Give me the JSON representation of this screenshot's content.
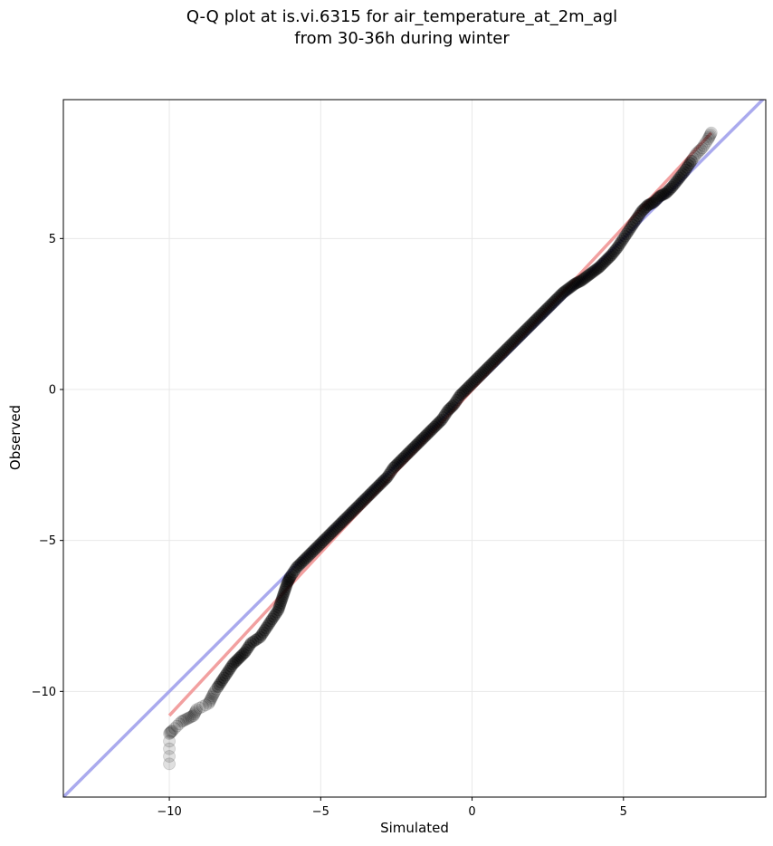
{
  "chart_data": {
    "type": "scatter",
    "title": "Q-Q plot at is.vi.6315 for air_temperature_at_2m_agl",
    "subtitle": "from 30-36h during winter",
    "xlabel": "Simulated",
    "ylabel": "Observed",
    "xlim": [
      -13.5,
      9.7
    ],
    "ylim": [
      -13.5,
      9.6
    ],
    "xticks": [
      -10,
      -5,
      0,
      5
    ],
    "yticks": [
      -10,
      -5,
      0,
      5
    ],
    "xtick_labels": [
      "−10",
      "−5",
      "0",
      "5"
    ],
    "ytick_labels": [
      "−10",
      "−5",
      "0",
      "5"
    ],
    "grid": true,
    "reference_line": {
      "name": "",
      "color": "#aaaaee",
      "from": [
        -13.5,
        -13.5
      ],
      "to": [
        9.7,
        9.7
      ]
    },
    "fit_line": {
      "name": "",
      "color": "#f2a0a0",
      "from": [
        -10.0,
        -10.8
      ],
      "to": [
        7.9,
        8.5
      ]
    },
    "quantiles": [
      [
        -10.0,
        -12.4
      ],
      [
        -10.0,
        -11.4
      ],
      [
        -9.9,
        -11.3
      ],
      [
        -9.6,
        -11.0
      ],
      [
        -9.4,
        -10.9
      ],
      [
        -9.2,
        -10.8
      ],
      [
        -9.1,
        -10.6
      ],
      [
        -8.7,
        -10.4
      ],
      [
        -8.6,
        -10.2
      ],
      [
        -8.5,
        -10.0
      ],
      [
        -8.3,
        -9.7
      ],
      [
        -8.1,
        -9.4
      ],
      [
        -7.9,
        -9.1
      ],
      [
        -7.7,
        -8.9
      ],
      [
        -7.5,
        -8.7
      ],
      [
        -7.3,
        -8.4
      ],
      [
        -7.0,
        -8.2
      ],
      [
        -6.8,
        -7.9
      ],
      [
        -6.6,
        -7.6
      ],
      [
        -6.4,
        -7.3
      ],
      [
        -6.3,
        -7.0
      ],
      [
        -6.2,
        -6.7
      ],
      [
        -6.1,
        -6.4
      ],
      [
        -6.0,
        -6.2
      ],
      [
        -5.8,
        -5.9
      ],
      [
        -5.6,
        -5.7
      ],
      [
        -5.4,
        -5.5
      ],
      [
        -5.2,
        -5.3
      ],
      [
        -5.0,
        -5.1
      ],
      [
        -4.8,
        -4.9
      ],
      [
        -4.6,
        -4.7
      ],
      [
        -4.4,
        -4.5
      ],
      [
        -4.2,
        -4.3
      ],
      [
        -4.0,
        -4.1
      ],
      [
        -3.8,
        -3.9
      ],
      [
        -3.6,
        -3.7
      ],
      [
        -3.4,
        -3.5
      ],
      [
        -3.2,
        -3.3
      ],
      [
        -3.0,
        -3.1
      ],
      [
        -2.8,
        -2.9
      ],
      [
        -2.6,
        -2.6
      ],
      [
        -2.4,
        -2.4
      ],
      [
        -2.2,
        -2.2
      ],
      [
        -2.0,
        -2.0
      ],
      [
        -1.8,
        -1.8
      ],
      [
        -1.6,
        -1.6
      ],
      [
        -1.4,
        -1.4
      ],
      [
        -1.2,
        -1.2
      ],
      [
        -1.0,
        -1.0
      ],
      [
        -0.8,
        -0.7
      ],
      [
        -0.6,
        -0.5
      ],
      [
        -0.4,
        -0.2
      ],
      [
        -0.2,
        0.0
      ],
      [
        0.0,
        0.2
      ],
      [
        0.2,
        0.4
      ],
      [
        0.4,
        0.6
      ],
      [
        0.6,
        0.8
      ],
      [
        0.8,
        1.0
      ],
      [
        1.0,
        1.2
      ],
      [
        1.2,
        1.4
      ],
      [
        1.4,
        1.6
      ],
      [
        1.6,
        1.8
      ],
      [
        1.8,
        2.0
      ],
      [
        2.0,
        2.2
      ],
      [
        2.2,
        2.4
      ],
      [
        2.4,
        2.6
      ],
      [
        2.6,
        2.8
      ],
      [
        2.8,
        3.0
      ],
      [
        3.0,
        3.2
      ],
      [
        3.2,
        3.35
      ],
      [
        3.4,
        3.5
      ],
      [
        3.6,
        3.6
      ],
      [
        3.8,
        3.75
      ],
      [
        4.0,
        3.9
      ],
      [
        4.2,
        4.05
      ],
      [
        4.4,
        4.25
      ],
      [
        4.6,
        4.45
      ],
      [
        4.8,
        4.7
      ],
      [
        5.0,
        5.0
      ],
      [
        5.2,
        5.3
      ],
      [
        5.4,
        5.6
      ],
      [
        5.6,
        5.9
      ],
      [
        5.8,
        6.1
      ],
      [
        6.0,
        6.2
      ],
      [
        6.2,
        6.4
      ],
      [
        6.4,
        6.5
      ],
      [
        6.6,
        6.7
      ],
      [
        6.8,
        6.95
      ],
      [
        7.0,
        7.2
      ],
      [
        7.2,
        7.5
      ],
      [
        7.4,
        7.8
      ],
      [
        7.6,
        8.0
      ],
      [
        7.8,
        8.3
      ],
      [
        7.9,
        8.5
      ]
    ]
  }
}
